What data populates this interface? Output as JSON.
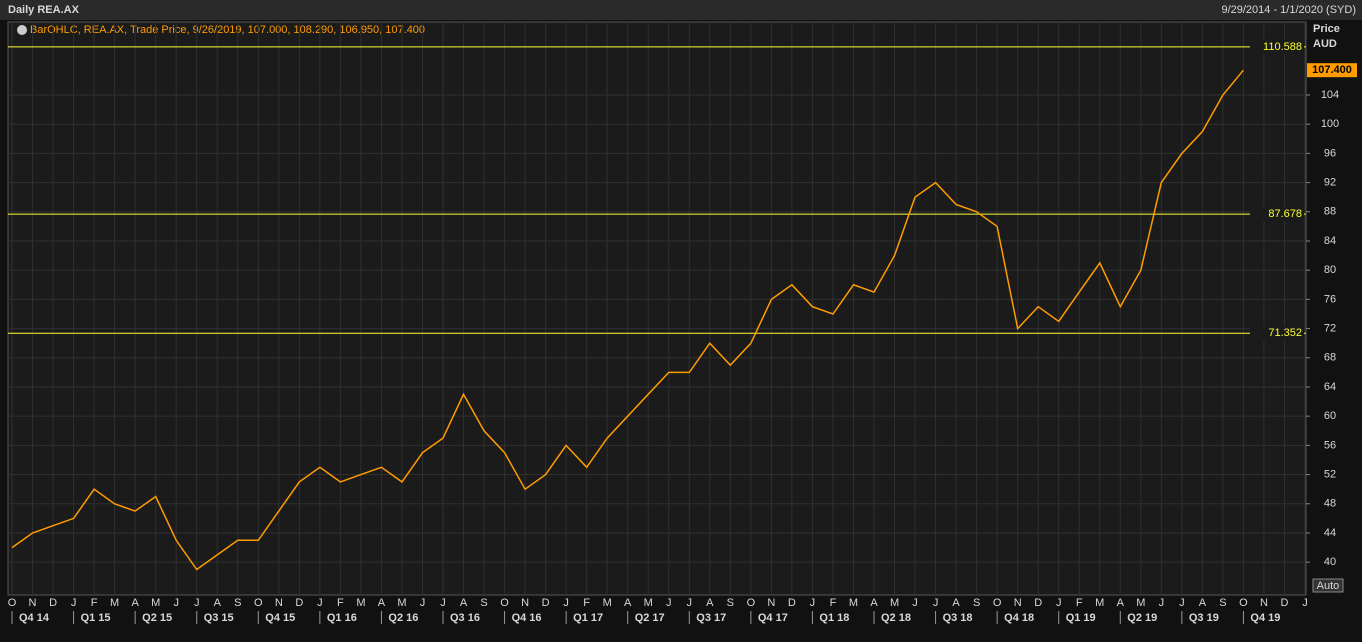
{
  "chart_data": {
    "type": "line",
    "title": "Daily REA.AX",
    "date_range": "9/29/2014 - 1/1/2020 (SYD)",
    "legend_text": "BarOHLC, REA.AX, Trade Price, 9/26/2019, 107.000, 108.290, 106.950, 107.400",
    "y_axis_title": "Price",
    "y_axis_unit": "AUD",
    "scale_mode": "Auto",
    "categories": [
      "O",
      "N",
      "D",
      "J",
      "F",
      "M",
      "A",
      "M",
      "J",
      "J",
      "A",
      "S",
      "O",
      "N",
      "D",
      "J",
      "F",
      "M",
      "A",
      "M",
      "J",
      "J",
      "A",
      "S",
      "O",
      "N",
      "D",
      "J",
      "F",
      "M",
      "A",
      "M",
      "J",
      "J",
      "A",
      "S",
      "O",
      "N",
      "D",
      "J",
      "F",
      "M",
      "A",
      "M",
      "J",
      "J",
      "A",
      "S",
      "O",
      "N",
      "D",
      "J",
      "F",
      "M",
      "A",
      "M",
      "J",
      "J",
      "A",
      "S",
      "O",
      "N",
      "D",
      "J"
    ],
    "quarters": [
      "Q4 14",
      "Q1 15",
      "Q2 15",
      "Q3 15",
      "Q4 15",
      "Q1 16",
      "Q2 16",
      "Q3 16",
      "Q4 16",
      "Q1 17",
      "Q2 17",
      "Q3 17",
      "Q4 17",
      "Q1 18",
      "Q2 18",
      "Q3 18",
      "Q4 18",
      "Q1 19",
      "Q2 19",
      "Q3 19",
      "Q4 19"
    ],
    "series": [
      {
        "name": "REA.AX",
        "color": "#ff9c00",
        "values": [
          42,
          44,
          45,
          46,
          50,
          48,
          47,
          49,
          43,
          39,
          41,
          43,
          43,
          47,
          51,
          53,
          51,
          52,
          53,
          51,
          55,
          57,
          63,
          58,
          55,
          50,
          52,
          56,
          53,
          57,
          60,
          63,
          66,
          66,
          70,
          67,
          70,
          76,
          78,
          75,
          74,
          78,
          77,
          82,
          90,
          92,
          89,
          88,
          86,
          72,
          75,
          73,
          77,
          81,
          75,
          80,
          92,
          96,
          99,
          104,
          107.4,
          null,
          null,
          null
        ]
      }
    ],
    "levels": [
      110.588,
      87.678,
      71.352
    ],
    "level_color": "#ffff33",
    "last_price": {
      "value": 107.4,
      "label": "107.400"
    },
    "ylim": [
      35.5,
      114
    ],
    "yticks": [
      40,
      44,
      48,
      52,
      56,
      60,
      64,
      68,
      72,
      76,
      80,
      84,
      88,
      92,
      96,
      100,
      104
    ],
    "grid": true
  }
}
